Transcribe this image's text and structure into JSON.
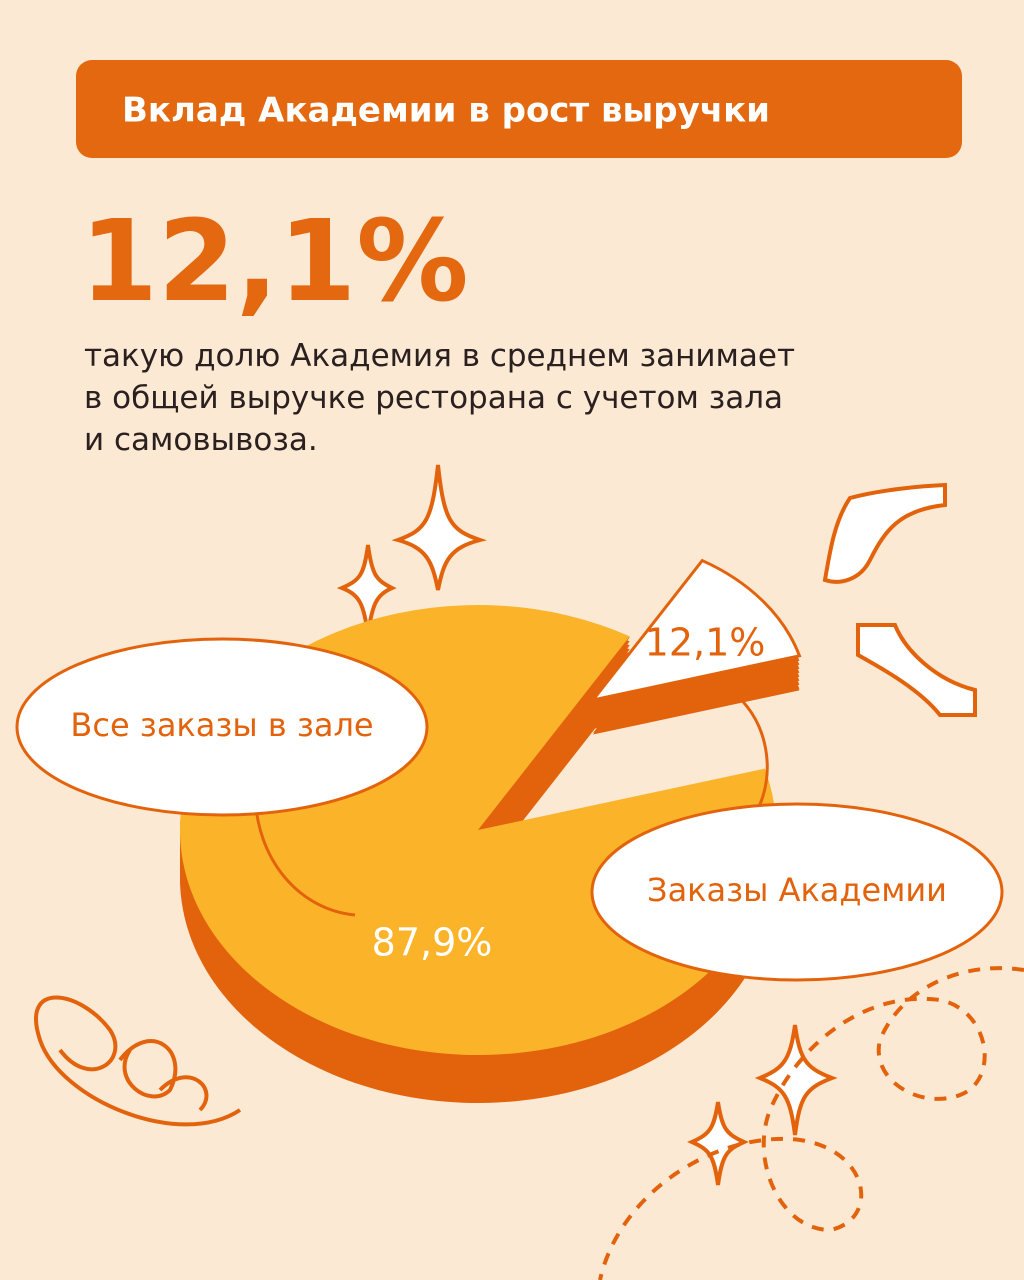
{
  "chart_data": {
    "type": "pie",
    "title": "Вклад Академии в рост выручки",
    "headline": "12,1%",
    "description": [
      "такую долю Академия в среднем занимает",
      "в общей выручке ресторана с учетом зала",
      "и самовывоза."
    ],
    "categories": [
      "Все заказы в зале",
      "Заказы Академии"
    ],
    "values": [
      87.9,
      12.1
    ],
    "value_labels": [
      "87,9%",
      "12,1%"
    ],
    "colors": [
      "#fbb42a",
      "#ffffff"
    ],
    "side_color": "#e3630c"
  }
}
